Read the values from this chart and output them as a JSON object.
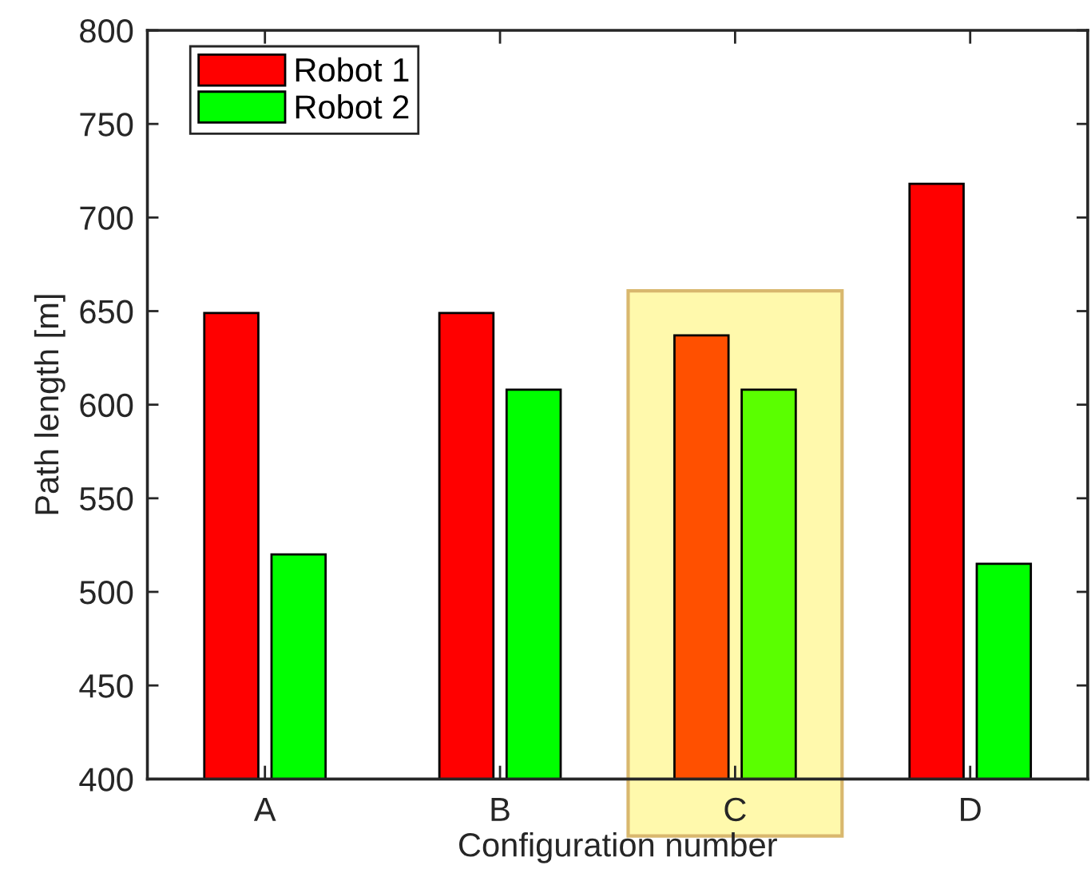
{
  "chart_data": {
    "type": "bar",
    "xlabel": "Configuration number",
    "ylabel": "Path length [m]",
    "categories": [
      "A",
      "B",
      "C",
      "D"
    ],
    "series": [
      {
        "name": "Robot 1",
        "color": "#ff0000",
        "colors": [
          "#ff0000",
          "#ff0000",
          "#ff5000",
          "#ff0000"
        ],
        "values": [
          649,
          649,
          637,
          718
        ]
      },
      {
        "name": "Robot 2",
        "color": "#00ff00",
        "colors": [
          "#00ff00",
          "#00ff00",
          "#5aff00",
          "#00ff00"
        ],
        "values": [
          520,
          608,
          608,
          515
        ]
      }
    ],
    "bands": [
      {
        "axis": "x",
        "from": "C",
        "to": "C",
        "color": "#fff9ac"
      }
    ],
    "ylim": [
      400,
      800
    ],
    "yticks": [
      400,
      450,
      500,
      550,
      600,
      650,
      700,
      750,
      800
    ],
    "grid": false,
    "legend": "top left"
  }
}
